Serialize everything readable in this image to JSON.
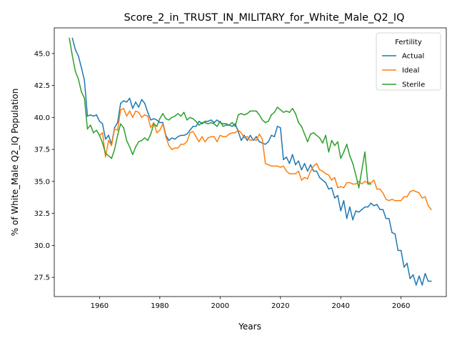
{
  "chart_data": {
    "type": "line",
    "title": "Score_2_in_TRUST_IN_MILITARY_for_White_Male_Q2_IQ",
    "xlabel": "Years",
    "ylabel": "% of White_Male Q2_IQ Population",
    "xlim": [
      1945,
      2075
    ],
    "ylim": [
      26.0,
      47.0
    ],
    "xticks": [
      1960,
      1980,
      2000,
      2020,
      2040,
      2060
    ],
    "yticks": [
      27.5,
      30.0,
      32.5,
      35.0,
      37.5,
      40.0,
      42.5,
      45.0
    ],
    "xtick_labels": [
      "1960",
      "1980",
      "2000",
      "2020",
      "2040",
      "2060"
    ],
    "ytick_labels": [
      "27.5",
      "30.0",
      "32.5",
      "35.0",
      "37.5",
      "40.0",
      "42.5",
      "45.0"
    ],
    "grid": false,
    "legend": {
      "title": "Fertility",
      "placement": "top-right"
    },
    "series": [
      {
        "name": "Actual",
        "color": "#1f77b4",
        "x": [
          1951,
          1952,
          1953,
          1954,
          1955,
          1956,
          1957,
          1958,
          1959,
          1960,
          1961,
          1962,
          1963,
          1964,
          1965,
          1966,
          1967,
          1968,
          1969,
          1970,
          1971,
          1972,
          1973,
          1974,
          1975,
          1976,
          1977,
          1978,
          1979,
          1980,
          1981,
          1982,
          1983,
          1984,
          1985,
          1986,
          1987,
          1988,
          1989,
          1990,
          1991,
          1992,
          1993,
          1994,
          1995,
          1996,
          1997,
          1998,
          1999,
          2000,
          2001,
          2002,
          2003,
          2004,
          2005,
          2006,
          2007,
          2008,
          2009,
          2010,
          2011,
          2012,
          2013,
          2014,
          2015,
          2016,
          2017,
          2018,
          2019,
          2020,
          2021,
          2022,
          2023,
          2024,
          2025,
          2026,
          2027,
          2028,
          2029,
          2030,
          2031,
          2032,
          2033,
          2034,
          2035,
          2036,
          2037,
          2038,
          2039,
          2040,
          2041,
          2042,
          2043,
          2044,
          2045,
          2046,
          2047,
          2048,
          2049,
          2050,
          2051,
          2052,
          2053,
          2054,
          2055,
          2056,
          2057,
          2058,
          2059,
          2060,
          2061,
          2062,
          2063,
          2064,
          2065,
          2066,
          2067,
          2068,
          2069,
          2070
        ],
        "values": [
          46.2,
          45.3,
          44.8,
          43.9,
          42.9,
          40.1,
          40.2,
          40.1,
          40.2,
          39.7,
          39.5,
          38.3,
          38.6,
          37.9,
          39.2,
          39.6,
          41.1,
          41.3,
          41.2,
          41.5,
          40.7,
          41.2,
          40.8,
          41.4,
          41.1,
          40.4,
          39.8,
          39.9,
          39.8,
          39.6,
          39.6,
          38.6,
          38.2,
          38.4,
          38.3,
          38.5,
          38.6,
          38.6,
          38.7,
          39.0,
          39.3,
          39.3,
          39.7,
          39.5,
          39.7,
          39.7,
          39.8,
          39.6,
          39.8,
          39.6,
          39.5,
          39.5,
          39.4,
          39.3,
          39.5,
          38.9,
          38.2,
          38.6,
          38.2,
          38.6,
          38.2,
          38.5,
          38.1,
          38.0,
          37.9,
          38.1,
          38.6,
          38.5,
          39.3,
          39.2,
          36.7,
          36.9,
          36.4,
          37.1,
          36.3,
          36.6,
          35.9,
          36.4,
          35.8,
          36.3,
          35.8,
          35.8,
          35.3,
          35.1,
          34.9,
          34.4,
          34.5,
          33.7,
          33.9,
          32.7,
          33.5,
          32.1,
          33.0,
          32.0,
          32.7,
          32.6,
          32.8,
          33.0,
          33.0,
          33.3,
          33.1,
          33.2,
          32.8,
          32.8,
          32.1,
          32.1,
          31.0,
          30.9,
          29.6,
          29.6,
          28.3,
          28.6,
          27.4,
          27.7,
          26.9,
          27.6,
          26.9,
          27.8,
          27.2,
          27.2
        ]
      },
      {
        "name": "Ideal",
        "color": "#ff7f0e",
        "x": [
          1960,
          1961,
          1962,
          1963,
          1964,
          1965,
          1966,
          1967,
          1968,
          1969,
          1970,
          1971,
          1972,
          1973,
          1974,
          1975,
          1976,
          1977,
          1978,
          1979,
          1980,
          1981,
          1982,
          1983,
          1984,
          1985,
          1986,
          1987,
          1988,
          1989,
          1990,
          1991,
          1992,
          1993,
          1994,
          1995,
          1996,
          1997,
          1998,
          1999,
          2000,
          2001,
          2002,
          2003,
          2004,
          2005,
          2006,
          2007,
          2008,
          2009,
          2010,
          2011,
          2012,
          2013,
          2014,
          2015,
          2016,
          2017,
          2018,
          2019,
          2020,
          2021,
          2022,
          2023,
          2024,
          2025,
          2026,
          2027,
          2028,
          2029,
          2030,
          2031,
          2032,
          2033,
          2034,
          2035,
          2036,
          2037,
          2038,
          2039,
          2040,
          2041,
          2042,
          2043,
          2044,
          2045,
          2046,
          2047,
          2048,
          2049,
          2050,
          2051,
          2052,
          2053,
          2054,
          2055,
          2056,
          2057,
          2058,
          2059,
          2060,
          2061,
          2062,
          2063,
          2064,
          2065,
          2066,
          2067,
          2068,
          2069,
          2070
        ],
        "values": [
          38.6,
          38.8,
          36.9,
          38.2,
          37.8,
          39.1,
          39.0,
          40.6,
          40.7,
          40.1,
          40.5,
          40.0,
          40.5,
          40.4,
          40.0,
          40.2,
          40.1,
          39.2,
          39.6,
          38.8,
          39.0,
          39.5,
          38.5,
          37.8,
          37.5,
          37.6,
          37.6,
          37.9,
          37.9,
          38.1,
          38.8,
          38.9,
          38.5,
          38.1,
          38.5,
          38.1,
          38.4,
          38.5,
          38.5,
          38.1,
          38.6,
          38.5,
          38.5,
          38.7,
          38.8,
          38.8,
          39.0,
          38.8,
          38.4,
          38.5,
          38.2,
          38.3,
          38.2,
          38.7,
          38.3,
          36.4,
          36.3,
          36.2,
          36.2,
          36.2,
          36.1,
          36.2,
          35.8,
          35.6,
          35.6,
          35.6,
          35.8,
          35.1,
          35.3,
          35.2,
          35.8,
          36.2,
          36.4,
          35.9,
          35.8,
          35.6,
          35.5,
          35.1,
          35.3,
          34.5,
          34.6,
          34.5,
          34.9,
          34.9,
          34.8,
          34.8,
          35.0,
          34.8,
          35.0,
          34.9,
          34.9,
          35.1,
          34.4,
          34.4,
          34.1,
          33.6,
          33.5,
          33.6,
          33.5,
          33.5,
          33.5,
          33.8,
          33.8,
          34.2,
          34.3,
          34.2,
          34.1,
          33.7,
          33.8,
          33.1,
          32.8
        ]
      },
      {
        "name": "Sterile",
        "color": "#2ca02c",
        "x": [
          1950,
          1951,
          1952,
          1953,
          1954,
          1955,
          1956,
          1957,
          1958,
          1959,
          1960,
          1961,
          1962,
          1963,
          1964,
          1965,
          1966,
          1967,
          1968,
          1969,
          1970,
          1971,
          1972,
          1973,
          1974,
          1975,
          1976,
          1977,
          1978,
          1979,
          1980,
          1981,
          1982,
          1983,
          1984,
          1985,
          1986,
          1987,
          1988,
          1989,
          1990,
          1991,
          1992,
          1993,
          1994,
          1995,
          1996,
          1997,
          1998,
          1999,
          2000,
          2001,
          2002,
          2003,
          2004,
          2005,
          2006,
          2007,
          2008,
          2009,
          2010,
          2011,
          2012,
          2013,
          2014,
          2015,
          2016,
          2017,
          2018,
          2019,
          2020,
          2021,
          2022,
          2023,
          2024,
          2025,
          2026,
          2027,
          2028,
          2029,
          2030,
          2031,
          2032,
          2033,
          2034,
          2035,
          2036,
          2037,
          2038,
          2039,
          2040,
          2041,
          2042,
          2043,
          2044,
          2045,
          2046,
          2047,
          2048,
          2049,
          2050
        ],
        "values": [
          46.2,
          44.8,
          43.6,
          43.0,
          42.0,
          41.5,
          39.1,
          39.4,
          38.8,
          39.0,
          38.6,
          38.0,
          37.2,
          37.0,
          36.8,
          37.5,
          38.6,
          39.5,
          39.2,
          38.2,
          37.7,
          37.1,
          37.7,
          38.1,
          38.2,
          38.4,
          38.2,
          38.7,
          39.5,
          39.3,
          39.9,
          40.3,
          39.9,
          39.8,
          40.0,
          40.1,
          40.3,
          40.1,
          40.4,
          39.8,
          40.0,
          39.9,
          39.7,
          39.4,
          39.6,
          39.6,
          39.5,
          39.6,
          39.5,
          39.3,
          39.7,
          39.3,
          39.4,
          39.4,
          39.6,
          39.3,
          40.2,
          40.3,
          40.2,
          40.3,
          40.5,
          40.5,
          40.5,
          40.2,
          39.8,
          39.6,
          39.7,
          40.2,
          40.4,
          40.8,
          40.6,
          40.4,
          40.5,
          40.4,
          40.7,
          40.3,
          39.6,
          39.3,
          38.7,
          38.1,
          38.7,
          38.8,
          38.6,
          38.4,
          38.0,
          38.6,
          37.3,
          38.2,
          37.8,
          38.1,
          36.8,
          37.3,
          37.9,
          37.0,
          36.4,
          35.5,
          34.5,
          35.9,
          37.3,
          34.8,
          34.8
        ]
      }
    ]
  }
}
